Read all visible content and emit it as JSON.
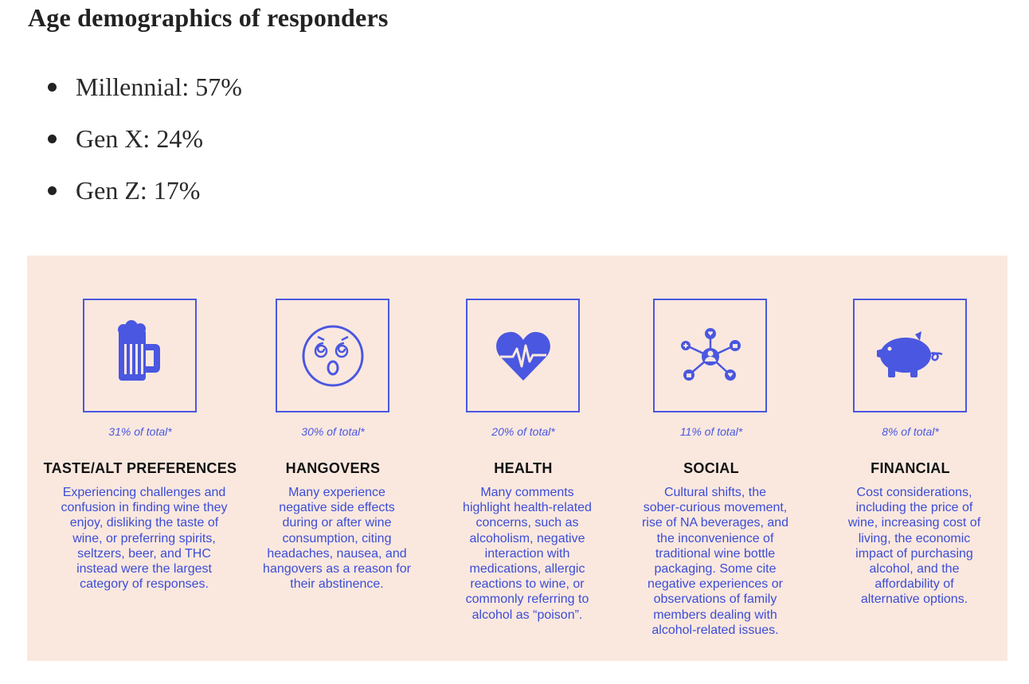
{
  "heading": "Age demographics of responders",
  "age_demographics": [
    {
      "label": "Millennial: 57%"
    },
    {
      "label": "Gen X: 24%"
    },
    {
      "label": "Gen Z: 17%"
    }
  ],
  "accent_color": "#4a57e0",
  "panel_color": "#fae8df",
  "categories": [
    {
      "icon": "beer-mug-icon",
      "percent": "31% of total*",
      "title": "TASTE/ALT PREFERENCES",
      "lines": [
        "Experiencing challenges and",
        "confusion in finding wine they",
        "enjoy, disliking the taste of",
        "wine, or preferring spirits,",
        "seltzers, beer, and THC",
        "instead were the largest",
        "category of responses."
      ]
    },
    {
      "icon": "dizzy-face-icon",
      "percent": "30% of total*",
      "title": "HANGOVERS",
      "lines": [
        "Many experience",
        "negative side effects",
        "during or after wine",
        "consumption, citing",
        "headaches, nausea, and",
        "hangovers as a reason for",
        "their abstinence."
      ]
    },
    {
      "icon": "heartbeat-icon",
      "percent": "20% of total*",
      "title": "HEALTH",
      "lines": [
        "Many comments",
        "highlight health-related",
        "concerns, such as",
        "alcoholism, negative",
        "interaction with",
        "medications, allergic",
        "reactions to wine, or",
        "commonly referring to",
        "alcohol as “poison”."
      ]
    },
    {
      "icon": "social-network-icon",
      "percent": "11% of total*",
      "title": "SOCIAL",
      "lines": [
        "Cultural shifts, the",
        "sober-curious movement,",
        "rise of NA beverages, and",
        "the inconvenience of",
        "traditional wine bottle",
        "packaging. Some cite",
        "negative experiences or",
        "observations of family",
        "members dealing with",
        "alcohol-related issues."
      ]
    },
    {
      "icon": "piggy-bank-icon",
      "percent": "8% of total*",
      "title": "FINANCIAL",
      "lines": [
        "Cost considerations,",
        "including the price of",
        "wine, increasing cost of",
        "living, the economic",
        "impact of purchasing",
        "alcohol, and the",
        "affordability of",
        "alternative options."
      ]
    }
  ]
}
